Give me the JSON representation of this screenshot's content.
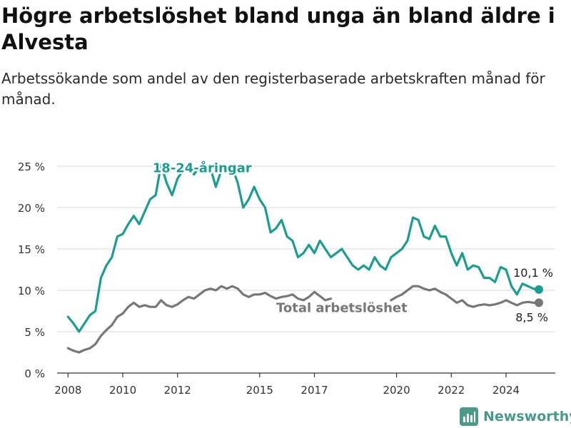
{
  "title": "Högre arbetslöshet bland unga än bland äldre i Alvesta",
  "subtitle": "Arbetssökande som andel av den registerbaserade arbetskraften månad för månad.",
  "brand": {
    "name": "Newsworthy",
    "color": "#4a9a8c"
  },
  "colors": {
    "youth": "#1a9e8f",
    "total": "#77767b",
    "grid": "#d9d9d9",
    "axis": "#333333"
  },
  "chart_data": {
    "type": "line",
    "title": "",
    "xlabel": "",
    "ylabel": "",
    "xlim": [
      2007.6,
      2025.8
    ],
    "ylim": [
      0,
      25
    ],
    "yticks": [
      0,
      5,
      10,
      15,
      20,
      25
    ],
    "ytick_labels": [
      "0 %",
      "5 %",
      "10 %",
      "15 %",
      "20 %",
      "25 %"
    ],
    "xticks": [
      2008,
      2010,
      2012,
      2015,
      2017,
      2020,
      2022,
      2024
    ],
    "xtick_labels": [
      "2008",
      "2010",
      "2012",
      "2015",
      "2017",
      "2020",
      "2022",
      "2024"
    ],
    "grid": true,
    "series": [
      {
        "name": "18-24-åringar",
        "color": "#1a9e8f",
        "label_at": [
          2012.9,
          24.8
        ],
        "end_label": "10,1 %",
        "end_value": 10.1,
        "points": [
          [
            2008.0,
            6.8
          ],
          [
            2008.2,
            6.0
          ],
          [
            2008.4,
            5.0
          ],
          [
            2008.6,
            6.0
          ],
          [
            2008.8,
            7.0
          ],
          [
            2009.0,
            7.5
          ],
          [
            2009.2,
            11.5
          ],
          [
            2009.4,
            13.0
          ],
          [
            2009.6,
            14.0
          ],
          [
            2009.8,
            16.5
          ],
          [
            2010.0,
            16.8
          ],
          [
            2010.2,
            18.0
          ],
          [
            2010.4,
            19.0
          ],
          [
            2010.6,
            18.0
          ],
          [
            2010.8,
            19.5
          ],
          [
            2011.0,
            21.0
          ],
          [
            2011.2,
            21.5
          ],
          [
            2011.4,
            25.2
          ],
          [
            2011.6,
            23.0
          ],
          [
            2011.8,
            21.5
          ],
          [
            2012.0,
            23.5
          ],
          [
            2012.2,
            24.5
          ],
          [
            2012.4,
            25.0
          ],
          [
            2012.6,
            24.0
          ],
          [
            2012.8,
            25.0
          ],
          [
            2013.0,
            24.5
          ],
          [
            2013.2,
            24.8
          ],
          [
            2013.4,
            22.5
          ],
          [
            2013.6,
            24.5
          ],
          [
            2013.8,
            25.0
          ],
          [
            2014.0,
            24.8
          ],
          [
            2014.2,
            23.0
          ],
          [
            2014.4,
            20.0
          ],
          [
            2014.6,
            21.0
          ],
          [
            2014.8,
            22.5
          ],
          [
            2015.0,
            21.0
          ],
          [
            2015.2,
            20.0
          ],
          [
            2015.4,
            17.0
          ],
          [
            2015.6,
            17.5
          ],
          [
            2015.8,
            18.5
          ],
          [
            2016.0,
            16.5
          ],
          [
            2016.2,
            16.0
          ],
          [
            2016.4,
            14.0
          ],
          [
            2016.6,
            14.5
          ],
          [
            2016.8,
            15.5
          ],
          [
            2017.0,
            14.5
          ],
          [
            2017.2,
            16.0
          ],
          [
            2017.4,
            15.0
          ],
          [
            2017.6,
            14.0
          ],
          [
            2017.8,
            14.5
          ],
          [
            2018.0,
            15.0
          ],
          [
            2018.2,
            14.0
          ],
          [
            2018.4,
            13.0
          ],
          [
            2018.6,
            12.5
          ],
          [
            2018.8,
            13.0
          ],
          [
            2019.0,
            12.5
          ],
          [
            2019.2,
            14.0
          ],
          [
            2019.4,
            13.0
          ],
          [
            2019.6,
            12.5
          ],
          [
            2019.8,
            14.0
          ],
          [
            2020.0,
            14.5
          ],
          [
            2020.2,
            15.0
          ],
          [
            2020.4,
            16.0
          ],
          [
            2020.6,
            18.8
          ],
          [
            2020.8,
            18.5
          ],
          [
            2021.0,
            16.5
          ],
          [
            2021.2,
            16.2
          ],
          [
            2021.4,
            17.8
          ],
          [
            2021.6,
            16.5
          ],
          [
            2021.8,
            16.5
          ],
          [
            2022.0,
            14.5
          ],
          [
            2022.2,
            13.0
          ],
          [
            2022.4,
            14.5
          ],
          [
            2022.6,
            12.5
          ],
          [
            2022.8,
            13.0
          ],
          [
            2023.0,
            12.8
          ],
          [
            2023.2,
            11.5
          ],
          [
            2023.4,
            11.5
          ],
          [
            2023.6,
            11.0
          ],
          [
            2023.8,
            12.8
          ],
          [
            2024.0,
            12.5
          ],
          [
            2024.2,
            10.5
          ],
          [
            2024.4,
            9.5
          ],
          [
            2024.6,
            10.8
          ],
          [
            2024.8,
            10.5
          ],
          [
            2025.0,
            10.2
          ],
          [
            2025.2,
            10.1
          ]
        ]
      },
      {
        "name": "Total arbetslöshet",
        "color": "#77767b",
        "label_at": [
          2018.0,
          7.9
        ],
        "end_label": "8,5 %",
        "end_value": 8.5,
        "points": [
          [
            2008.0,
            3.0
          ],
          [
            2008.2,
            2.7
          ],
          [
            2008.4,
            2.5
          ],
          [
            2008.6,
            2.8
          ],
          [
            2008.8,
            3.0
          ],
          [
            2009.0,
            3.5
          ],
          [
            2009.2,
            4.5
          ],
          [
            2009.4,
            5.2
          ],
          [
            2009.6,
            5.8
          ],
          [
            2009.8,
            6.8
          ],
          [
            2010.0,
            7.2
          ],
          [
            2010.2,
            8.0
          ],
          [
            2010.4,
            8.5
          ],
          [
            2010.6,
            8.0
          ],
          [
            2010.8,
            8.2
          ],
          [
            2011.0,
            8.0
          ],
          [
            2011.2,
            8.0
          ],
          [
            2011.4,
            8.8
          ],
          [
            2011.6,
            8.2
          ],
          [
            2011.8,
            8.0
          ],
          [
            2012.0,
            8.3
          ],
          [
            2012.2,
            8.8
          ],
          [
            2012.4,
            9.2
          ],
          [
            2012.6,
            9.0
          ],
          [
            2012.8,
            9.5
          ],
          [
            2013.0,
            10.0
          ],
          [
            2013.2,
            10.2
          ],
          [
            2013.4,
            10.0
          ],
          [
            2013.6,
            10.5
          ],
          [
            2013.8,
            10.2
          ],
          [
            2014.0,
            10.5
          ],
          [
            2014.2,
            10.2
          ],
          [
            2014.4,
            9.5
          ],
          [
            2014.6,
            9.2
          ],
          [
            2014.8,
            9.5
          ],
          [
            2015.0,
            9.5
          ],
          [
            2015.2,
            9.7
          ],
          [
            2015.4,
            9.3
          ],
          [
            2015.6,
            9.0
          ],
          [
            2015.8,
            9.2
          ],
          [
            2016.0,
            9.3
          ],
          [
            2016.2,
            9.5
          ],
          [
            2016.4,
            9.0
          ],
          [
            2016.6,
            8.8
          ],
          [
            2016.8,
            9.2
          ],
          [
            2017.0,
            9.8
          ],
          [
            2017.2,
            9.3
          ],
          [
            2017.4,
            8.8
          ],
          [
            2017.6,
            9.0
          ]
        ],
        "points_b": [
          [
            2019.8,
            8.8
          ],
          [
            2020.0,
            9.2
          ],
          [
            2020.2,
            9.5
          ],
          [
            2020.4,
            10.0
          ],
          [
            2020.6,
            10.5
          ],
          [
            2020.8,
            10.5
          ],
          [
            2021.0,
            10.2
          ],
          [
            2021.2,
            10.0
          ],
          [
            2021.4,
            10.2
          ],
          [
            2021.6,
            9.8
          ],
          [
            2021.8,
            9.5
          ],
          [
            2022.0,
            9.0
          ],
          [
            2022.2,
            8.5
          ],
          [
            2022.4,
            8.8
          ],
          [
            2022.6,
            8.2
          ],
          [
            2022.8,
            8.0
          ],
          [
            2023.0,
            8.2
          ],
          [
            2023.2,
            8.3
          ],
          [
            2023.4,
            8.2
          ],
          [
            2023.6,
            8.3
          ],
          [
            2023.8,
            8.5
          ],
          [
            2024.0,
            8.8
          ],
          [
            2024.2,
            8.5
          ],
          [
            2024.4,
            8.2
          ],
          [
            2024.6,
            8.5
          ],
          [
            2024.8,
            8.6
          ],
          [
            2025.0,
            8.5
          ],
          [
            2025.2,
            8.5
          ]
        ]
      }
    ]
  }
}
